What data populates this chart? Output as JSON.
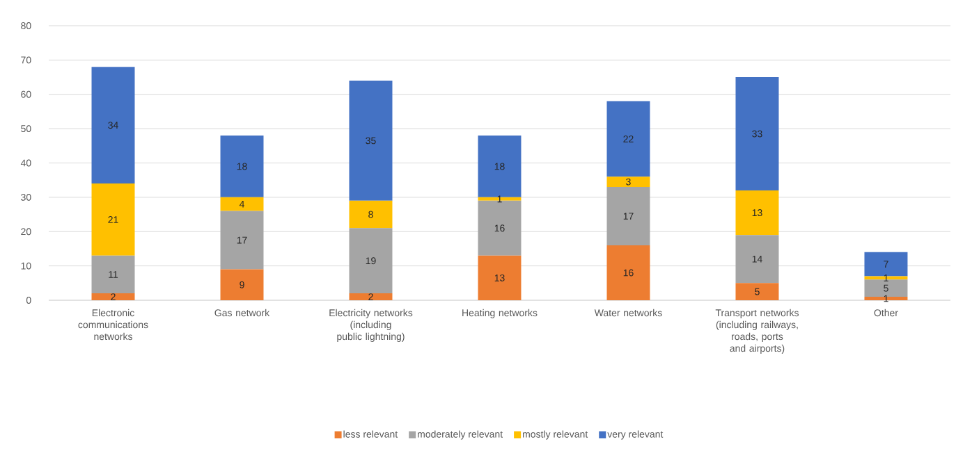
{
  "chart_data": {
    "type": "bar",
    "stacked": true,
    "categories": [
      "Electronic communications networks",
      "Gas network",
      "Electricity networks (including public lightning)",
      "Heating networks",
      "Water networks",
      "Transport networks (including railways, roads, ports and airports)",
      "Other"
    ],
    "series": [
      {
        "name": "less relevant",
        "color": "#ed7d31",
        "values": [
          2,
          9,
          2,
          13,
          16,
          5,
          1
        ]
      },
      {
        "name": "moderately relevant",
        "color": "#a5a5a5",
        "values": [
          11,
          17,
          19,
          16,
          17,
          14,
          5
        ]
      },
      {
        "name": "mostly relevant",
        "color": "#ffc000",
        "values": [
          21,
          4,
          8,
          1,
          3,
          13,
          1
        ]
      },
      {
        "name": "very relevant",
        "color": "#4472c4",
        "values": [
          34,
          18,
          35,
          18,
          22,
          33,
          7
        ]
      }
    ],
    "ylim": [
      0,
      80
    ],
    "yticks": [
      0,
      10,
      20,
      30,
      40,
      50,
      60,
      70,
      80
    ],
    "grid": "y",
    "legend": "bottom",
    "data_labels": true
  }
}
